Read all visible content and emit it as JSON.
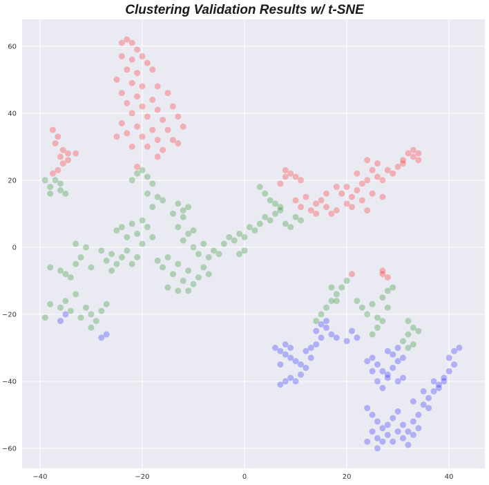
{
  "chart_data": {
    "type": "scatter",
    "title": "Clustering Validation Results w/ t-SNE",
    "xlabel": "",
    "ylabel": "",
    "xlim": [
      -43.5,
      47
    ],
    "ylim": [
      -66,
      68
    ],
    "xticks": [
      -40,
      -20,
      0,
      20,
      40
    ],
    "yticks": [
      -60,
      -40,
      -20,
      0,
      20,
      40,
      60
    ],
    "xtick_labels": [
      "−40",
      "−20",
      "0",
      "20",
      "40"
    ],
    "ytick_labels": [
      "−60",
      "−40",
      "−20",
      "0",
      "20",
      "40",
      "60"
    ],
    "grid": true,
    "background": "#eaeaf2",
    "grid_color": "#ffffff",
    "marker_alpha": 0.25,
    "series": [
      {
        "color": "#ff0000",
        "points": [
          [
            -24,
            61
          ],
          [
            -23,
            62
          ],
          [
            -22,
            61
          ],
          [
            -21,
            59
          ],
          [
            -24,
            57
          ],
          [
            -22,
            56
          ],
          [
            -20,
            57
          ],
          [
            -19,
            55
          ],
          [
            -23,
            53
          ],
          [
            -21,
            52
          ],
          [
            -18,
            53
          ],
          [
            -25,
            50
          ],
          [
            -22,
            49
          ],
          [
            -20,
            48
          ],
          [
            -17,
            48
          ],
          [
            -24,
            46
          ],
          [
            -21,
            45
          ],
          [
            -18,
            44
          ],
          [
            -15,
            46
          ],
          [
            -23,
            43
          ],
          [
            -20,
            42
          ],
          [
            -17,
            41
          ],
          [
            -14,
            42
          ],
          [
            -22,
            40
          ],
          [
            -19,
            39
          ],
          [
            -16,
            38
          ],
          [
            -13,
            39
          ],
          [
            -24,
            37
          ],
          [
            -21,
            36
          ],
          [
            -18,
            35
          ],
          [
            -15,
            35
          ],
          [
            -12,
            36
          ],
          [
            -23,
            34
          ],
          [
            -20,
            33
          ],
          [
            -17,
            32
          ],
          [
            -14,
            32
          ],
          [
            -22,
            30
          ],
          [
            -19,
            30
          ],
          [
            -16,
            29
          ],
          [
            -13,
            31
          ],
          [
            -25,
            33
          ],
          [
            -17,
            27
          ],
          [
            -21,
            24
          ],
          [
            -37.5,
            35
          ],
          [
            -36.5,
            33
          ],
          [
            -37,
            31
          ],
          [
            -35.5,
            29
          ],
          [
            -36,
            27
          ],
          [
            -34.5,
            28
          ],
          [
            -35.5,
            25
          ],
          [
            -36.5,
            23
          ],
          [
            -37.5,
            22
          ],
          [
            -34.5,
            26
          ],
          [
            -33,
            28
          ],
          [
            7,
            19
          ],
          [
            8,
            21
          ],
          [
            9,
            22
          ],
          [
            10,
            21
          ],
          [
            11,
            20
          ],
          [
            8,
            23
          ],
          [
            10,
            14
          ],
          [
            11,
            12
          ],
          [
            13,
            11
          ],
          [
            14,
            13
          ],
          [
            12,
            15
          ],
          [
            15,
            14
          ],
          [
            16,
            12
          ],
          [
            17,
            10
          ],
          [
            18,
            11
          ],
          [
            16,
            16
          ],
          [
            14,
            10
          ],
          [
            18,
            18
          ],
          [
            19,
            16
          ],
          [
            20,
            18
          ],
          [
            21,
            15
          ],
          [
            20,
            13
          ],
          [
            22,
            17
          ],
          [
            23,
            19
          ],
          [
            24,
            20
          ],
          [
            22,
            22
          ],
          [
            25,
            23
          ],
          [
            26,
            21
          ],
          [
            25,
            16
          ],
          [
            23,
            14
          ],
          [
            21,
            12
          ],
          [
            24,
            11
          ],
          [
            27,
            15
          ],
          [
            26,
            25
          ],
          [
            24,
            26
          ],
          [
            28,
            23
          ],
          [
            27,
            20
          ],
          [
            29,
            22
          ],
          [
            30,
            24
          ],
          [
            31,
            26
          ],
          [
            32,
            28
          ],
          [
            33,
            27
          ],
          [
            34,
            26
          ],
          [
            33,
            29
          ],
          [
            31,
            25
          ],
          [
            34,
            28
          ],
          [
            27,
            -8
          ],
          [
            28,
            -9
          ],
          [
            27,
            -7
          ],
          [
            21,
            -8
          ]
        ]
      },
      {
        "color": "#008000",
        "points": [
          [
            -39,
            20
          ],
          [
            -38,
            18
          ],
          [
            -37,
            20
          ],
          [
            -36,
            17
          ],
          [
            -35,
            16
          ],
          [
            -38,
            16
          ],
          [
            -36,
            19
          ],
          [
            -21,
            22
          ],
          [
            -20,
            23
          ],
          [
            -19,
            21
          ],
          [
            -22,
            20
          ],
          [
            -18,
            19
          ],
          [
            -19,
            16
          ],
          [
            -17,
            15
          ],
          [
            -18,
            12
          ],
          [
            -16,
            14
          ],
          [
            -13,
            13
          ],
          [
            -12,
            11
          ],
          [
            -11,
            12
          ],
          [
            -14,
            10
          ],
          [
            -12,
            9
          ],
          [
            -24,
            6
          ],
          [
            -22,
            7
          ],
          [
            -20,
            8
          ],
          [
            -19,
            6
          ],
          [
            -21,
            4
          ],
          [
            -23,
            3
          ],
          [
            -25,
            5
          ],
          [
            -18,
            3
          ],
          [
            -20,
            1
          ],
          [
            -28,
            -1
          ],
          [
            -26,
            -2
          ],
          [
            -27,
            -4
          ],
          [
            -25,
            -5
          ],
          [
            -26,
            -7
          ],
          [
            -24,
            -3
          ],
          [
            -23,
            -1
          ],
          [
            -22,
            -5
          ],
          [
            -21,
            -3
          ],
          [
            -33,
            1
          ],
          [
            -31,
            0
          ],
          [
            -32,
            -3
          ],
          [
            -30,
            -6
          ],
          [
            -33,
            -5
          ],
          [
            -38,
            -6
          ],
          [
            -36,
            -7
          ],
          [
            -35,
            -8
          ],
          [
            -34,
            -9
          ],
          [
            -38,
            -17
          ],
          [
            -36,
            -18
          ],
          [
            -35,
            -16
          ],
          [
            -34,
            -19
          ],
          [
            -33,
            -14
          ],
          [
            -32,
            -21
          ],
          [
            -31,
            -18
          ],
          [
            -30,
            -20
          ],
          [
            -29,
            -22
          ],
          [
            -30,
            -24
          ],
          [
            -28,
            -19
          ],
          [
            -27,
            -17
          ],
          [
            -39,
            -21
          ],
          [
            -17,
            -4
          ],
          [
            -16,
            -6
          ],
          [
            -15,
            -3
          ],
          [
            -14,
            -8
          ],
          [
            -13,
            -5
          ],
          [
            -12,
            -10
          ],
          [
            -11,
            -7
          ],
          [
            -10,
            -11
          ],
          [
            -9,
            -9
          ],
          [
            -15,
            -12
          ],
          [
            -13,
            -13
          ],
          [
            -11,
            -13
          ],
          [
            -8,
            -6
          ],
          [
            -7,
            -8
          ],
          [
            -12,
            2
          ],
          [
            -10,
            0
          ],
          [
            -8,
            1
          ],
          [
            -6,
            -1
          ],
          [
            -9,
            -2
          ],
          [
            -7,
            -3
          ],
          [
            -5,
            -2
          ],
          [
            -11,
            4
          ],
          [
            -13,
            6
          ],
          [
            -10,
            5
          ],
          [
            -4,
            1
          ],
          [
            -3,
            3
          ],
          [
            -2,
            2
          ],
          [
            -1,
            4
          ],
          [
            0,
            3
          ],
          [
            1,
            6
          ],
          [
            0,
            -1
          ],
          [
            -1,
            -2
          ],
          [
            2,
            5
          ],
          [
            3,
            7
          ],
          [
            4,
            9
          ],
          [
            5,
            8
          ],
          [
            6,
            10
          ],
          [
            7,
            12
          ],
          [
            8,
            7
          ],
          [
            9,
            6
          ],
          [
            10,
            9
          ],
          [
            11,
            8
          ],
          [
            3,
            18
          ],
          [
            4,
            16
          ],
          [
            5,
            14
          ],
          [
            6,
            13
          ],
          [
            7,
            11
          ],
          [
            14,
            -22
          ],
          [
            15,
            -20
          ],
          [
            16,
            -18
          ],
          [
            17,
            -16
          ],
          [
            18,
            -14
          ],
          [
            19,
            -12
          ],
          [
            20,
            -10
          ],
          [
            17,
            -12
          ],
          [
            18,
            -16
          ],
          [
            22,
            -16
          ],
          [
            23,
            -18
          ],
          [
            24,
            -20
          ],
          [
            25,
            -17
          ],
          [
            26,
            -21
          ],
          [
            27,
            -15
          ],
          [
            28,
            -13
          ],
          [
            29,
            -12
          ],
          [
            28,
            -18
          ],
          [
            27,
            -22
          ],
          [
            26,
            -24
          ],
          [
            25,
            -26
          ],
          [
            32,
            -22
          ],
          [
            33,
            -24
          ],
          [
            32,
            -26
          ],
          [
            31,
            -28
          ],
          [
            33,
            -29
          ],
          [
            32,
            -30
          ],
          [
            34,
            -25
          ]
        ]
      },
      {
        "color": "#0000ff",
        "points": [
          [
            -36,
            -22
          ],
          [
            -35,
            -20
          ],
          [
            -27,
            -26
          ],
          [
            -28,
            -27
          ],
          [
            6,
            -30
          ],
          [
            7,
            -31
          ],
          [
            8,
            -32
          ],
          [
            9,
            -33
          ],
          [
            10,
            -34
          ],
          [
            7,
            -35
          ],
          [
            8,
            -29
          ],
          [
            9,
            -30
          ],
          [
            11,
            -35
          ],
          [
            12,
            -36
          ],
          [
            11,
            -38
          ],
          [
            10,
            -40
          ],
          [
            9,
            -39
          ],
          [
            8,
            -40
          ],
          [
            7,
            -41
          ],
          [
            13,
            -33
          ],
          [
            12,
            -31
          ],
          [
            14,
            -25
          ],
          [
            15,
            -23
          ],
          [
            16,
            -24
          ],
          [
            17,
            -26
          ],
          [
            15,
            -27
          ],
          [
            14,
            -29
          ],
          [
            13,
            -30
          ],
          [
            16,
            -22
          ],
          [
            18,
            -27
          ],
          [
            21,
            -25
          ],
          [
            22,
            -27
          ],
          [
            20,
            -28
          ],
          [
            24,
            -34
          ],
          [
            25,
            -33
          ],
          [
            26,
            -35
          ],
          [
            27,
            -37
          ],
          [
            28,
            -38
          ],
          [
            29,
            -36
          ],
          [
            30,
            -34
          ],
          [
            29,
            -32
          ],
          [
            28,
            -31
          ],
          [
            30,
            -30
          ],
          [
            31,
            -33
          ],
          [
            26,
            -40
          ],
          [
            27,
            -42
          ],
          [
            28,
            -39
          ],
          [
            25,
            -37
          ],
          [
            30,
            -40
          ],
          [
            31,
            -39
          ],
          [
            24,
            -48
          ],
          [
            25,
            -50
          ],
          [
            26,
            -52
          ],
          [
            27,
            -54
          ],
          [
            25,
            -55
          ],
          [
            24,
            -58
          ],
          [
            26,
            -57
          ],
          [
            28,
            -56
          ],
          [
            29,
            -58
          ],
          [
            30,
            -55
          ],
          [
            31,
            -57
          ],
          [
            32,
            -59
          ],
          [
            33,
            -56
          ],
          [
            34,
            -54
          ],
          [
            33,
            -52
          ],
          [
            32,
            -55
          ],
          [
            29,
            -51
          ],
          [
            30,
            -49
          ],
          [
            28,
            -53
          ],
          [
            31,
            -53
          ],
          [
            27,
            -58
          ],
          [
            26,
            -60
          ],
          [
            35,
            -47
          ],
          [
            36,
            -45
          ],
          [
            37,
            -43
          ],
          [
            38,
            -41
          ],
          [
            39,
            -39
          ],
          [
            40,
            -37
          ],
          [
            41,
            -35
          ],
          [
            40,
            -33
          ],
          [
            41,
            -31
          ],
          [
            42,
            -30
          ],
          [
            39,
            -40
          ],
          [
            38,
            -42
          ],
          [
            36,
            -48
          ],
          [
            34,
            -50
          ],
          [
            33,
            -46
          ],
          [
            35,
            -43
          ],
          [
            37,
            -40
          ]
        ]
      }
    ]
  }
}
